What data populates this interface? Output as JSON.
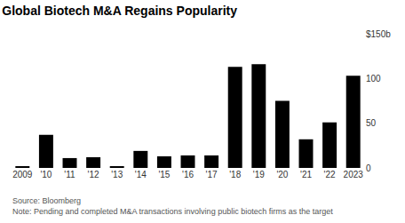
{
  "chart_data": {
    "type": "bar",
    "title": "Global Biotech M&A Regains Popularity",
    "categories": [
      "2009",
      "'10",
      "'11",
      "'12",
      "'13",
      "'14",
      "'15",
      "'16",
      "'17",
      "'18",
      "'19",
      "'20",
      "'21",
      "'22",
      "2023"
    ],
    "values": [
      2,
      37,
      11,
      12,
      2,
      19,
      13,
      14,
      14,
      113,
      116,
      75,
      32,
      51,
      103
    ],
    "color": "#000000",
    "ylim": [
      0,
      150
    ],
    "yticks": [
      0,
      50,
      100,
      {
        "value": 150,
        "label": "$150b"
      }
    ],
    "grid": false,
    "annotations": [
      "Source: Bloomberg",
      "Note: Pending and completed M&A transactions involving public biotech firms as the target"
    ]
  }
}
